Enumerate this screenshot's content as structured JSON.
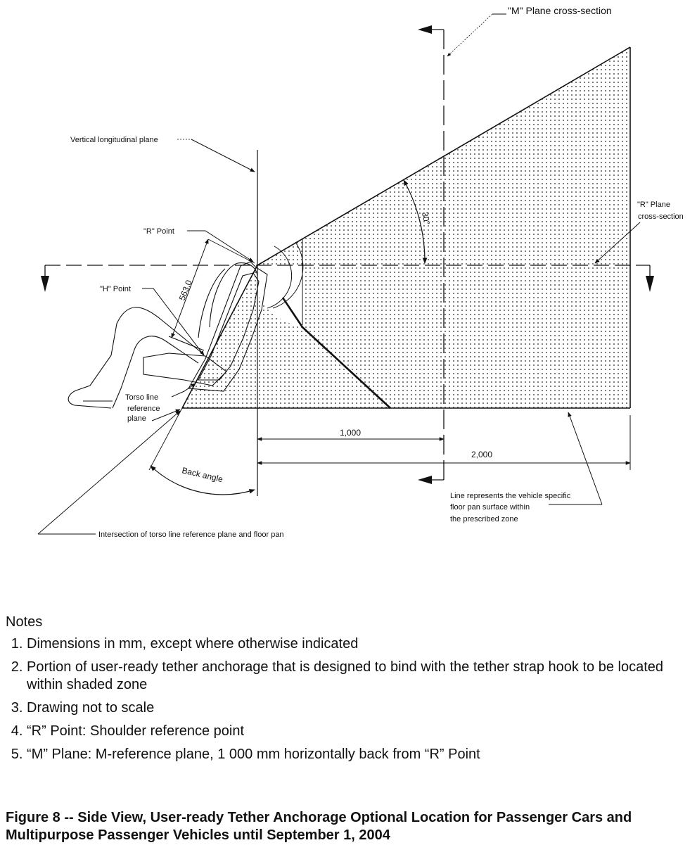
{
  "diagram": {
    "labels": {
      "m_plane": "\"M\" Plane cross-section",
      "vertical_plane": "Vertical longitudinal plane",
      "r_point": "\"R\" Point",
      "h_point": "\"H\" Point",
      "r_plane_1": "\"R\" Plane",
      "r_plane_2": "cross-section",
      "torso_1": "Torso line",
      "torso_2": "reference",
      "torso_3": "plane",
      "back_angle": "Back angle",
      "intersection": "Intersection of torso line reference plane and floor pan",
      "floor_1": "Line represents the vehicle specific",
      "floor_2": "floor pan surface within",
      "floor_3": "the prescribed zone"
    },
    "dimensions": {
      "dim_563": "563,0",
      "dim_1000": "1,000",
      "dim_2000": "2,000",
      "angle_30": "30°"
    }
  },
  "notes": {
    "heading": "Notes",
    "items": [
      "Dimensions in mm, except where otherwise indicated",
      "Portion of user-ready tether anchorage that is designed to bind with the tether strap hook to be located within shaded zone",
      "Drawing not to scale",
      "“R” Point:  Shoulder reference point",
      "“M” Plane:  M-reference plane, 1 000 mm horizontally back from “R” Point"
    ]
  },
  "caption": "Figure 8 -- Side View, User-ready Tether Anchorage Optional Location for Passenger Cars and Multipurpose Passenger Vehicles until September 1, 2004"
}
